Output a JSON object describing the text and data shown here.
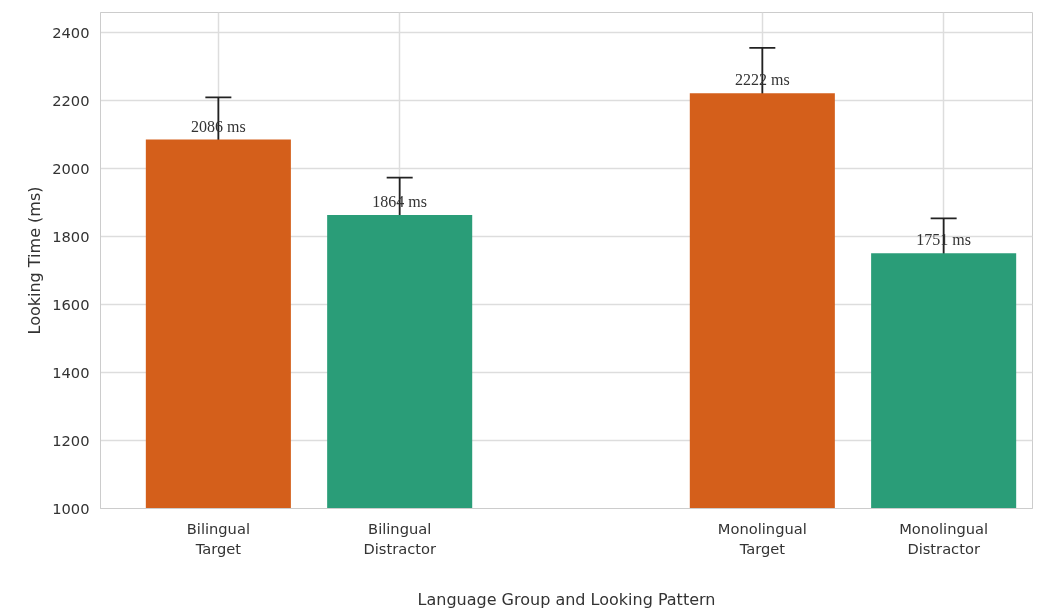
{
  "chart_data": {
    "type": "bar",
    "xlabel": "Language Group and Looking Pattern",
    "ylabel": "Looking Time (ms)",
    "categories": [
      "Bilingual\nTarget",
      "Bilingual\nDistractor",
      null,
      "Monolingual\nTarget",
      "Monolingual\nDistractor"
    ],
    "values": [
      2086,
      1864,
      null,
      2222,
      1751
    ],
    "colors": [
      "#d45f1b",
      "#2a9d78",
      null,
      "#d45f1b",
      "#2a9d78"
    ],
    "errors": [
      124,
      110,
      null,
      134,
      103
    ],
    "value_labels": [
      "2086 ms",
      "1864 ms",
      null,
      "2222 ms",
      "1751 ms"
    ],
    "ylim": [
      1000,
      2460
    ],
    "yticks": [
      1000,
      1200,
      1400,
      1600,
      1800,
      2000,
      2200,
      2400
    ],
    "grid": true
  }
}
